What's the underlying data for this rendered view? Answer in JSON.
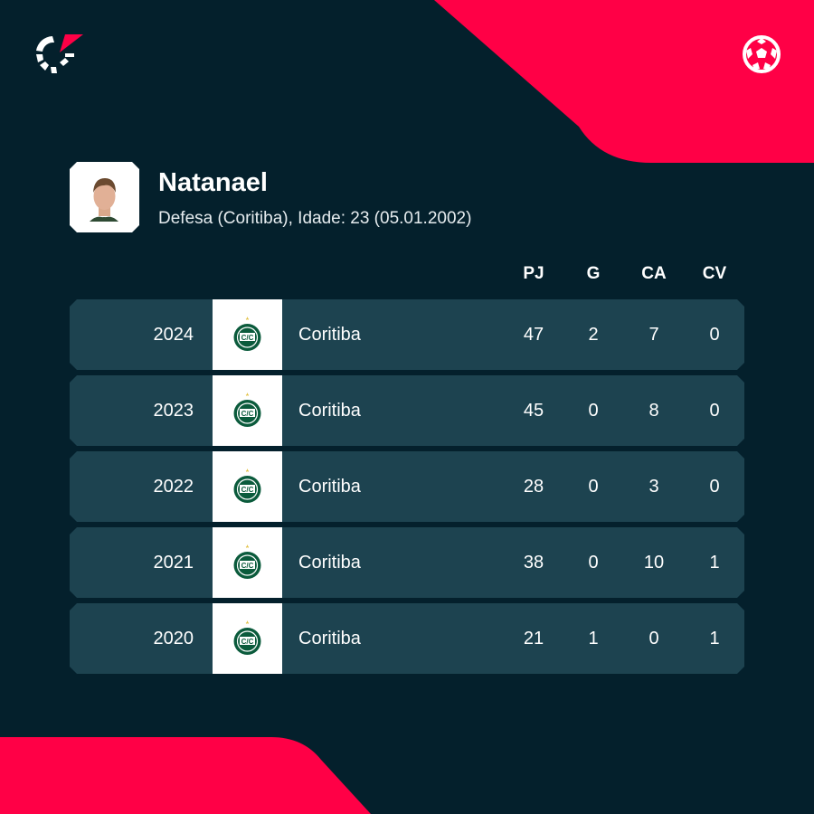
{
  "colors": {
    "background": "#04202c",
    "accent": "#ff0046",
    "row": "#1d4350",
    "club_green": "#0b5b3c"
  },
  "icons": {
    "brand": "flashscore-logo-icon",
    "sport": "football-icon",
    "club": "coritiba-crest-icon"
  },
  "player": {
    "name": "Natanael",
    "details": "Defesa (Coritiba), Idade: 23 (05.01.2002)"
  },
  "columns": [
    "PJ",
    "G",
    "CA",
    "CV"
  ],
  "rows": [
    {
      "season": "2024",
      "club": "Coritiba",
      "pj": "47",
      "g": "2",
      "ca": "7",
      "cv": "0"
    },
    {
      "season": "2023",
      "club": "Coritiba",
      "pj": "45",
      "g": "0",
      "ca": "8",
      "cv": "0"
    },
    {
      "season": "2022",
      "club": "Coritiba",
      "pj": "28",
      "g": "0",
      "ca": "3",
      "cv": "0"
    },
    {
      "season": "2021",
      "club": "Coritiba",
      "pj": "38",
      "g": "0",
      "ca": "10",
      "cv": "1"
    },
    {
      "season": "2020",
      "club": "Coritiba",
      "pj": "21",
      "g": "1",
      "ca": "0",
      "cv": "1"
    }
  ]
}
